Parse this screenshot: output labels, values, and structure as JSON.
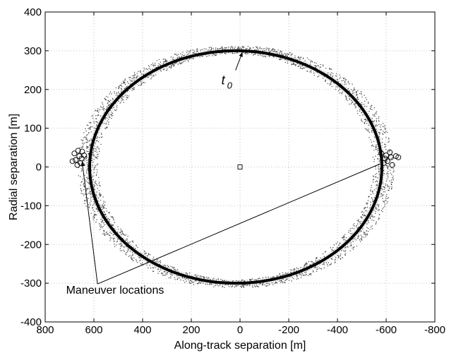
{
  "chart_data": {
    "type": "scatter",
    "title": "",
    "xlabel": "Along-track separation [m]",
    "ylabel": "Radial separation [m]",
    "xlim": [
      800,
      -800
    ],
    "ylim": [
      -400,
      400
    ],
    "x_reversed": true,
    "xticks": [
      800,
      600,
      400,
      200,
      0,
      -200,
      -400,
      -600,
      -800
    ],
    "yticks": [
      -400,
      -300,
      -200,
      -100,
      0,
      100,
      200,
      300,
      400
    ],
    "grid": true,
    "legend": "none",
    "series": [
      {
        "kind": "nominal-ellipse",
        "style": "thick black dotted trajectory band",
        "center": [
          17.5,
          0
        ],
        "semi_axis_along_track": 600,
        "semi_axis_radial": 300,
        "points": [
          [
            617.5,
            0
          ],
          [
            577.3,
            77.6
          ],
          [
            537.1,
            150.0
          ],
          [
            441.7,
            212.1
          ],
          [
            317.5,
            259.8
          ],
          [
            172.8,
            289.8
          ],
          [
            17.5,
            300.0
          ],
          [
            -137.8,
            289.8
          ],
          [
            -282.5,
            259.8
          ],
          [
            -406.8,
            212.1
          ],
          [
            -502.1,
            150.0
          ],
          [
            -562.1,
            77.6
          ],
          [
            -582.5,
            0
          ],
          [
            -562.1,
            -77.6
          ],
          [
            -502.1,
            -150.0
          ],
          [
            -406.8,
            -212.1
          ],
          [
            -282.5,
            -259.8
          ],
          [
            -137.8,
            -289.8
          ],
          [
            17.5,
            -300.0
          ],
          [
            172.8,
            -289.8
          ],
          [
            317.5,
            -259.8
          ],
          [
            441.7,
            -212.1
          ],
          [
            537.1,
            -150.0
          ],
          [
            597.1,
            -77.6
          ]
        ]
      },
      {
        "kind": "dispersed-trajectories",
        "style": "gray dotted scatter band around ellipse",
        "radial_spread_outside": 50,
        "radial_spread_inside": 35
      },
      {
        "kind": "maneuver-markers",
        "marker": "circle",
        "points": [
          [
            680,
            35
          ],
          [
            665,
            42
          ],
          [
            660,
            28
          ],
          [
            650,
            22
          ],
          [
            675,
            18
          ],
          [
            655,
            10
          ],
          [
            668,
            5
          ],
          [
            640,
            30
          ],
          [
            688,
            15
          ],
          [
            648,
            40
          ],
          [
            -580,
            35
          ],
          [
            -600,
            30
          ],
          [
            -620,
            25
          ],
          [
            -605,
            15
          ],
          [
            -625,
            5
          ],
          [
            -640,
            28
          ],
          [
            -595,
            22
          ],
          [
            -615,
            38
          ],
          [
            -650,
            25
          ],
          [
            -590,
            10
          ]
        ]
      },
      {
        "kind": "origin-marker",
        "marker": "square",
        "points": [
          [
            0,
            0
          ]
        ]
      }
    ],
    "annotations": [
      {
        "text": "t",
        "subscript": "0",
        "anchor": [
          30,
          235
        ],
        "arrow_to": [
          -10,
          300
        ]
      },
      {
        "text": "Maneuver locations",
        "anchor": [
          720,
          -320
        ],
        "lines_from": [
          585,
          -302
        ],
        "lines_to": [
          [
            660,
            25
          ],
          [
            -575,
            8
          ]
        ]
      }
    ]
  }
}
